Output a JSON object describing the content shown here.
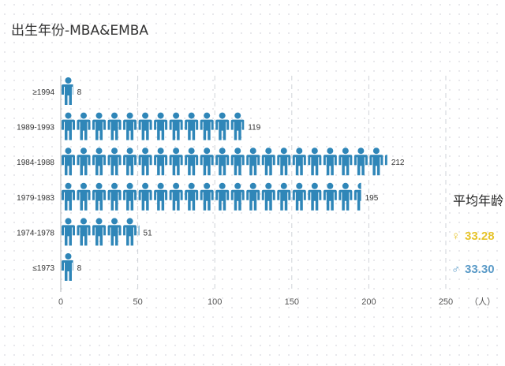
{
  "chart_data": {
    "type": "bar",
    "title": "出生年份-MBA&EMBA",
    "categories": [
      "≥1994",
      "1989-1993",
      "1984-1988",
      "1979-1983",
      "1974-1978",
      "≤1973"
    ],
    "values": [
      8,
      119,
      212,
      195,
      51,
      8
    ],
    "x_ticks": [
      0,
      50,
      100,
      150,
      200,
      250
    ],
    "xlim": [
      0,
      250
    ],
    "unit": "（人）",
    "grid": true,
    "icon": "person-icon",
    "icon_value": 10,
    "bar_color": "#2f86b8"
  },
  "summary": {
    "title": "平均年龄",
    "female": {
      "symbol": "♀",
      "value": "33.28",
      "color": "#e6c32a"
    },
    "male": {
      "symbol": "♂",
      "value": "33.30",
      "color": "#5b9bc8"
    }
  }
}
